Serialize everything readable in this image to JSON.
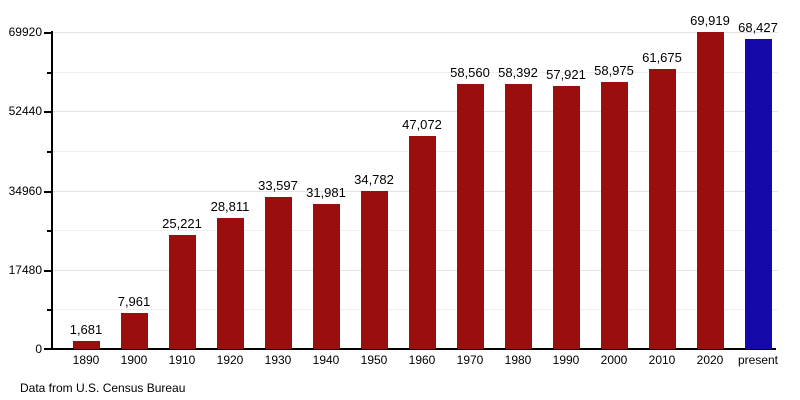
{
  "chart_data": {
    "type": "bar",
    "categories": [
      "1890",
      "1900",
      "1910",
      "1920",
      "1930",
      "1940",
      "1950",
      "1960",
      "1970",
      "1980",
      "1990",
      "2000",
      "2010",
      "2020",
      "present"
    ],
    "values": [
      1681,
      7961,
      25221,
      28811,
      33597,
      31981,
      34782,
      47072,
      58560,
      58392,
      57921,
      58975,
      61675,
      69919,
      68427
    ],
    "value_labels": [
      "1,681",
      "7,961",
      "25,221",
      "28,811",
      "33,597",
      "31,981",
      "34,782",
      "47,072",
      "58,560",
      "58,392",
      "57,921",
      "58,975",
      "61,675",
      "69,919",
      "68,427"
    ],
    "title": "",
    "xlabel": "",
    "ylabel": "",
    "ylim": [
      0,
      69920
    ],
    "ytick_values": [
      0,
      17480,
      34960,
      52440,
      69920
    ],
    "ytick_labels": [
      "0",
      "17480",
      "34960",
      "52440",
      "69920"
    ],
    "minor_grid_step": 8740,
    "grid": "on",
    "legend_position": "none",
    "bar_colors": {
      "default": "#9B0E0E",
      "highlight": "#1408AB",
      "highlight_category": "present"
    },
    "footnote": "Data from U.S. Census Bureau"
  }
}
